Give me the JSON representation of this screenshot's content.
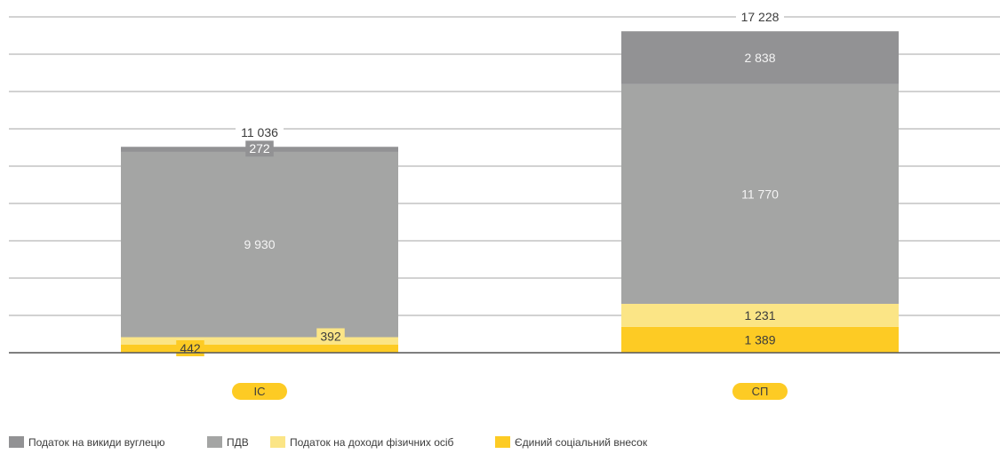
{
  "chart_data": {
    "type": "bar",
    "stacked": true,
    "categories": [
      "ІС",
      "СП"
    ],
    "totals": [
      "11 036",
      "17 228"
    ],
    "series": [
      {
        "name": "Єдиний соціальний внесок",
        "color": "#FDCB24",
        "values": [
          442,
          1389
        ],
        "labels": [
          "442",
          "1 389"
        ]
      },
      {
        "name": "Податок на доходи фізичних осіб",
        "color": "#FBE586",
        "values": [
          392,
          1231
        ],
        "labels": [
          "392",
          "1 231"
        ]
      },
      {
        "name": "ПДВ",
        "color": "#A4A5A4",
        "values": [
          9930,
          11770
        ],
        "labels": [
          "9 930",
          "11 770"
        ]
      },
      {
        "name": "Податок на викиди вуглецю",
        "color": "#929294",
        "values": [
          272,
          2838
        ],
        "labels": [
          "272",
          "2 838"
        ]
      }
    ],
    "legend_labels": [
      "Податок на викиди вуглецю",
      "ПДВ",
      "Податок на доходи фізичних осіб",
      "Єдиний соціальний внесок"
    ],
    "legend_colors": [
      "#929294",
      "#A4A5A4",
      "#FBE586",
      "#FDCB24"
    ],
    "ylim": [
      0,
      18000
    ],
    "grid": true,
    "legend_position": "bottom-left",
    "category_pill_color": "#FDCB24"
  }
}
